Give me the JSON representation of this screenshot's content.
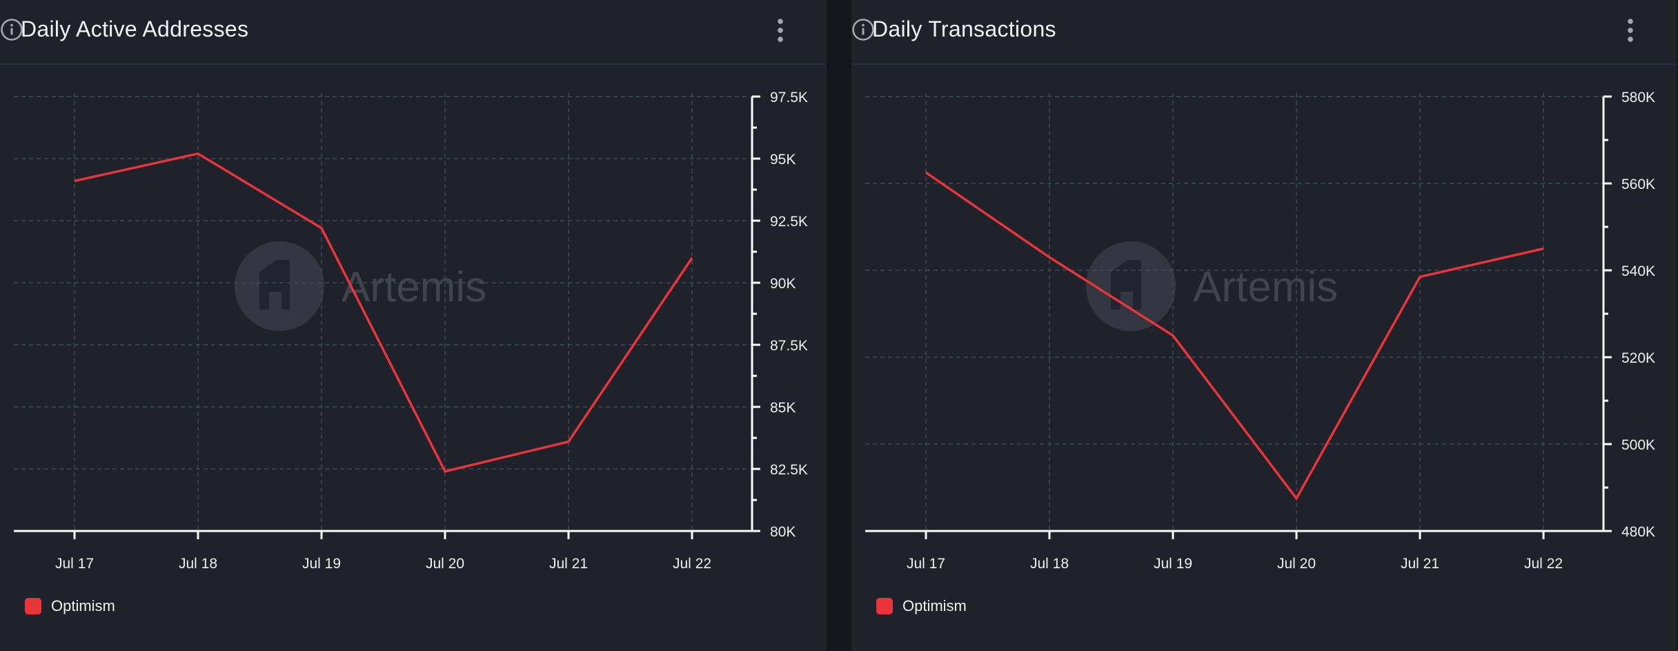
{
  "colors": {
    "series": "#e8353a",
    "grid": "#444756",
    "axis": "#ffffff",
    "watermark": "#3c3e4a"
  },
  "watermark": {
    "text": "Artemis",
    "icon": "artemis-logo-icon"
  },
  "icons": {
    "info": "info-icon",
    "menu": "vertical-dots-icon"
  },
  "chart_data": [
    {
      "type": "line",
      "title": "Daily Active Addresses",
      "categories": [
        "Jul 17",
        "Jul 18",
        "Jul 19",
        "Jul 20",
        "Jul 21",
        "Jul 22"
      ],
      "series": [
        {
          "name": "Optimism",
          "values": [
            94100,
            95200,
            92200,
            82400,
            83600,
            91000
          ]
        }
      ],
      "ylim": [
        80000,
        97500
      ],
      "yticks": [
        80000,
        82500,
        85000,
        87500,
        90000,
        92500,
        95000,
        97500
      ],
      "ytick_labels": [
        "80K",
        "82.5K",
        "85K",
        "87.5K",
        "90K",
        "92.5K",
        "95K",
        "97.5K"
      ],
      "legend": {
        "label": "Optimism",
        "position": "bottom-left"
      }
    },
    {
      "type": "line",
      "title": "Daily Transactions",
      "categories": [
        "Jul 17",
        "Jul 18",
        "Jul 19",
        "Jul 20",
        "Jul 21",
        "Jul 22"
      ],
      "series": [
        {
          "name": "Optimism",
          "values": [
            562500,
            543000,
            525000,
            487500,
            538500,
            545000
          ]
        }
      ],
      "ylim": [
        480000,
        580000
      ],
      "yticks": [
        480000,
        500000,
        520000,
        540000,
        560000,
        580000
      ],
      "ytick_labels": [
        "480K",
        "500K",
        "520K",
        "540K",
        "560K",
        "580K"
      ],
      "legend": {
        "label": "Optimism",
        "position": "bottom-left"
      }
    }
  ]
}
